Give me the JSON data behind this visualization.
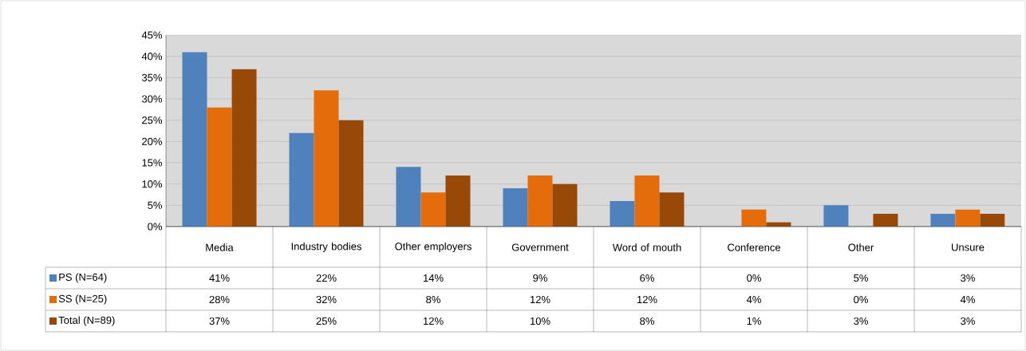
{
  "chart_data": {
    "type": "bar",
    "categories": [
      "Media",
      "Industry bodies",
      "Other employers",
      "Government",
      "Word of mouth",
      "Conference",
      "Other",
      "Unsure"
    ],
    "series": [
      {
        "name": "PS (N=64)",
        "color": "#4f81bd",
        "values": [
          41,
          22,
          14,
          9,
          6,
          0,
          5,
          3
        ],
        "value_labels": [
          "41%",
          "22%",
          "14%",
          "9%",
          "6%",
          "0%",
          "5%",
          "3%"
        ]
      },
      {
        "name": "SS (N=25)",
        "color": "#e46c0a",
        "values": [
          28,
          32,
          8,
          12,
          12,
          4,
          0,
          4
        ],
        "value_labels": [
          "28%",
          "32%",
          "8%",
          "12%",
          "12%",
          "4%",
          "0%",
          "4%"
        ]
      },
      {
        "name": "Total (N=89)",
        "color": "#984807",
        "values": [
          37,
          25,
          12,
          10,
          8,
          1,
          3,
          3
        ],
        "value_labels": [
          "37%",
          "25%",
          "12%",
          "10%",
          "8%",
          "1%",
          "3%",
          "3%"
        ]
      }
    ],
    "ylim": [
      0,
      45
    ],
    "yticks": [
      {
        "value": 0,
        "label": "0%"
      },
      {
        "value": 5,
        "label": "5%"
      },
      {
        "value": 10,
        "label": "10%"
      },
      {
        "value": 15,
        "label": "15%"
      },
      {
        "value": 20,
        "label": "20%"
      },
      {
        "value": 25,
        "label": "25%"
      },
      {
        "value": 30,
        "label": "30%"
      },
      {
        "value": 35,
        "label": "35%"
      },
      {
        "value": 40,
        "label": "40%"
      },
      {
        "value": 45,
        "label": "45%"
      }
    ],
    "grid": "y",
    "legend": "bottom"
  }
}
